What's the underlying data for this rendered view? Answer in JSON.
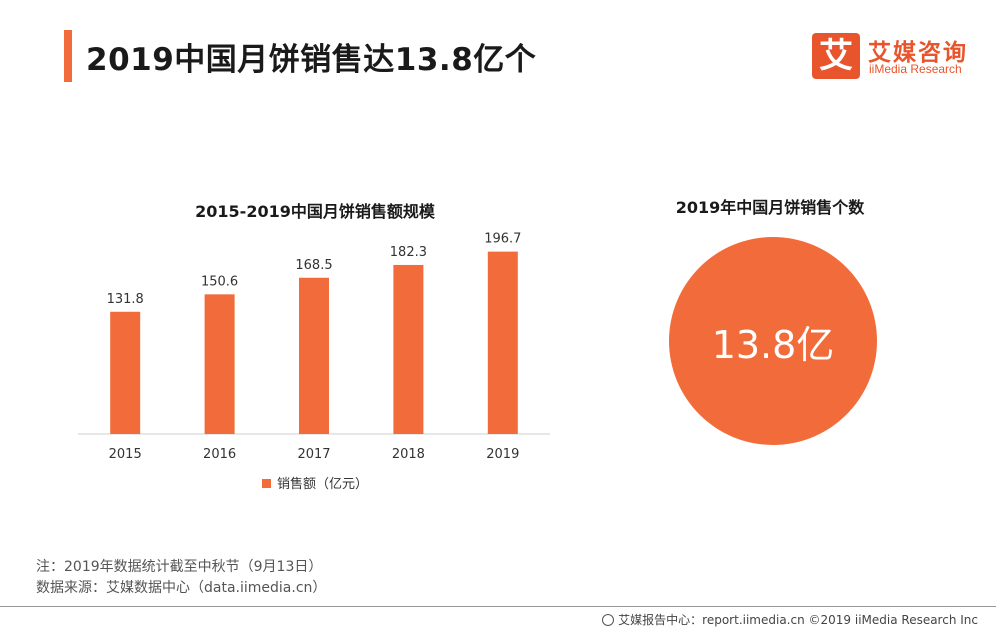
{
  "header": {
    "title": "2019中国月饼销售达13.8亿个"
  },
  "logo": {
    "badge_char": "艾",
    "name_cn": "艾媒咨询",
    "name_en": "iiMedia Research",
    "color": "#e8542b"
  },
  "chart_data": {
    "type": "bar",
    "title": "2015-2019中国月饼销售额规模",
    "categories": [
      "2015",
      "2016",
      "2017",
      "2018",
      "2019"
    ],
    "series": [
      {
        "name": "销售额（亿元）",
        "values": [
          131.8,
          150.6,
          168.5,
          182.3,
          196.7
        ]
      }
    ],
    "value_labels": [
      "131.8",
      "150.6",
      "168.5",
      "182.3",
      "196.7"
    ],
    "xlabel": "",
    "ylabel": "",
    "ylim": [
      0,
      220
    ],
    "grid": false,
    "legend": "bottom-center",
    "bar_color": "#f26b3a"
  },
  "stat": {
    "title": "2019年中国月饼销售个数",
    "value": "13.8亿",
    "color": "#f26b3a"
  },
  "notes": {
    "note": "注：2019年数据统计截至中秋节（9月13日）",
    "source": "数据来源：艾媒数据中心（data.iimedia.cn）"
  },
  "footer": {
    "text": "艾媒报告中心：report.iimedia.cn  ©2019  iiMedia Research  Inc"
  }
}
